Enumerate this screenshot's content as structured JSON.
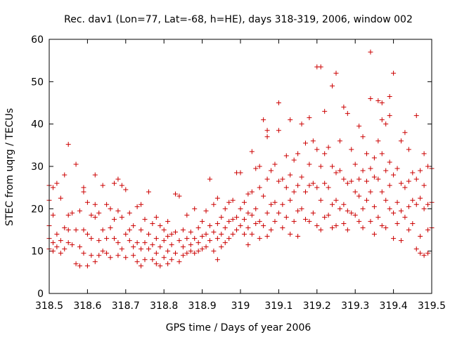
{
  "chart_data": {
    "type": "scatter",
    "title": "Rec. dav1 (Lon=77, Lat=-68, h=HE), days 318-319, 2006, window 002",
    "xlabel": "GPS time / Days of year 2006",
    "ylabel": "STEC from uqrg / TECUs",
    "xlim": [
      318.5,
      319.5
    ],
    "ylim": [
      0,
      60
    ],
    "xticks": [
      318.5,
      318.6,
      318.7,
      318.8,
      318.9,
      319,
      319.1,
      319.2,
      319.3,
      319.4,
      319.5
    ],
    "xtick_labels": [
      "318.5",
      "318.6",
      "318.7",
      "318.8",
      "318.9",
      "319",
      "319.1",
      "319.2",
      "319.3",
      "319.4",
      "319.5"
    ],
    "yticks": [
      0,
      10,
      20,
      30,
      40,
      50,
      60
    ],
    "ytick_labels": [
      "0",
      "10",
      "20",
      "30",
      "40",
      "50",
      "60"
    ],
    "grid": false,
    "marker": "plus",
    "color": "#cc0000",
    "points": [
      [
        318.5,
        25.5
      ],
      [
        318.5,
        22.0
      ],
      [
        318.5,
        16.0
      ],
      [
        318.5,
        13.0
      ],
      [
        318.5,
        10.5
      ],
      [
        318.51,
        25.0
      ],
      [
        318.51,
        18.5
      ],
      [
        318.51,
        12.0
      ],
      [
        318.51,
        10.0
      ],
      [
        318.52,
        26.0
      ],
      [
        318.52,
        14.0
      ],
      [
        318.52,
        11.0
      ],
      [
        318.53,
        22.5
      ],
      [
        318.53,
        12.5
      ],
      [
        318.53,
        9.5
      ],
      [
        318.54,
        28.0
      ],
      [
        318.54,
        15.5
      ],
      [
        318.54,
        10.5
      ],
      [
        318.55,
        35.2
      ],
      [
        318.55,
        18.5
      ],
      [
        318.55,
        15.0
      ],
      [
        318.55,
        12.0
      ],
      [
        318.56,
        19.0
      ],
      [
        318.56,
        11.5
      ],
      [
        318.57,
        30.5
      ],
      [
        318.57,
        15.0
      ],
      [
        318.57,
        7.0
      ],
      [
        318.58,
        19.5
      ],
      [
        318.58,
        11.0
      ],
      [
        318.58,
        6.5
      ],
      [
        318.59,
        25.0
      ],
      [
        318.59,
        24.0
      ],
      [
        318.59,
        15.0
      ],
      [
        318.59,
        9.5
      ],
      [
        318.6,
        21.5
      ],
      [
        318.6,
        14.0
      ],
      [
        318.6,
        6.5
      ],
      [
        318.61,
        18.5
      ],
      [
        318.61,
        13.0
      ],
      [
        318.61,
        9.0
      ],
      [
        318.62,
        28.0
      ],
      [
        318.62,
        21.0
      ],
      [
        318.62,
        18.0
      ],
      [
        318.62,
        7.5
      ],
      [
        318.63,
        19.0
      ],
      [
        318.63,
        12.5
      ],
      [
        318.63,
        9.0
      ],
      [
        318.64,
        25.5
      ],
      [
        318.64,
        15.0
      ],
      [
        318.64,
        10.0
      ],
      [
        318.65,
        21.0
      ],
      [
        318.65,
        13.0
      ],
      [
        318.65,
        9.5
      ],
      [
        318.66,
        20.0
      ],
      [
        318.66,
        15.5
      ],
      [
        318.66,
        8.5
      ],
      [
        318.67,
        26.0
      ],
      [
        318.67,
        17.5
      ],
      [
        318.67,
        13.0
      ],
      [
        318.68,
        27.0
      ],
      [
        318.68,
        19.5
      ],
      [
        318.68,
        12.0
      ],
      [
        318.68,
        9.0
      ],
      [
        318.69,
        25.5
      ],
      [
        318.69,
        18.0
      ],
      [
        318.69,
        10.5
      ],
      [
        318.7,
        24.5
      ],
      [
        318.7,
        14.0
      ],
      [
        318.7,
        8.5
      ],
      [
        318.71,
        19.0
      ],
      [
        318.71,
        15.0
      ],
      [
        318.71,
        12.5
      ],
      [
        318.72,
        16.0
      ],
      [
        318.72,
        11.0
      ],
      [
        318.72,
        9.0
      ],
      [
        318.73,
        20.5
      ],
      [
        318.73,
        12.0
      ],
      [
        318.73,
        7.5
      ],
      [
        318.74,
        21.0
      ],
      [
        318.74,
        15.0
      ],
      [
        318.74,
        10.5
      ],
      [
        318.74,
        6.5
      ],
      [
        318.75,
        17.5
      ],
      [
        318.75,
        12.0
      ],
      [
        318.75,
        8.0
      ],
      [
        318.76,
        24.0
      ],
      [
        318.76,
        14.0
      ],
      [
        318.76,
        10.5
      ],
      [
        318.77,
        16.5
      ],
      [
        318.77,
        11.5
      ],
      [
        318.77,
        8.0
      ],
      [
        318.78,
        18.0
      ],
      [
        318.78,
        13.0
      ],
      [
        318.78,
        9.5
      ],
      [
        318.78,
        7.0
      ],
      [
        318.79,
        16.0
      ],
      [
        318.79,
        11.0
      ],
      [
        318.79,
        6.5
      ],
      [
        318.8,
        15.0
      ],
      [
        318.8,
        12.5
      ],
      [
        318.8,
        8.5
      ],
      [
        318.81,
        17.0
      ],
      [
        318.81,
        13.5
      ],
      [
        318.81,
        10.0
      ],
      [
        318.81,
        7.0
      ],
      [
        318.82,
        14.0
      ],
      [
        318.82,
        11.5
      ],
      [
        318.82,
        8.0
      ],
      [
        318.83,
        23.5
      ],
      [
        318.83,
        14.5
      ],
      [
        318.83,
        9.5
      ],
      [
        318.84,
        23.0
      ],
      [
        318.84,
        12.5
      ],
      [
        318.84,
        7.5
      ],
      [
        318.85,
        15.0
      ],
      [
        318.85,
        11.0
      ],
      [
        318.85,
        9.0
      ],
      [
        318.86,
        18.5
      ],
      [
        318.86,
        13.0
      ],
      [
        318.86,
        9.5
      ],
      [
        318.87,
        14.5
      ],
      [
        318.87,
        11.5
      ],
      [
        318.87,
        10.0
      ],
      [
        318.88,
        20.0
      ],
      [
        318.88,
        13.0
      ],
      [
        318.88,
        9.5
      ],
      [
        318.89,
        15.5
      ],
      [
        318.89,
        12.0
      ],
      [
        318.89,
        10.0
      ],
      [
        318.9,
        17.0
      ],
      [
        318.9,
        13.5
      ],
      [
        318.9,
        10.5
      ],
      [
        318.91,
        19.5
      ],
      [
        318.91,
        14.0
      ],
      [
        318.91,
        11.0
      ],
      [
        318.92,
        27.0
      ],
      [
        318.92,
        16.0
      ],
      [
        318.92,
        12.5
      ],
      [
        318.93,
        21.0
      ],
      [
        318.93,
        14.5
      ],
      [
        318.93,
        10.0
      ],
      [
        318.94,
        22.5
      ],
      [
        318.94,
        16.5
      ],
      [
        318.94,
        13.0
      ],
      [
        318.94,
        8.0
      ],
      [
        318.95,
        18.0
      ],
      [
        318.95,
        14.0
      ],
      [
        318.95,
        11.0
      ],
      [
        318.96,
        20.0
      ],
      [
        318.96,
        15.5
      ],
      [
        318.96,
        12.0
      ],
      [
        318.97,
        21.5
      ],
      [
        318.97,
        17.0
      ],
      [
        318.97,
        13.0
      ],
      [
        318.98,
        22.0
      ],
      [
        318.98,
        17.5
      ],
      [
        318.98,
        14.0
      ],
      [
        318.99,
        28.5
      ],
      [
        318.99,
        18.0
      ],
      [
        318.99,
        15.0
      ],
      [
        319.0,
        28.5
      ],
      [
        319.0,
        20.0
      ],
      [
        319.0,
        16.0
      ],
      [
        319.01,
        21.5
      ],
      [
        319.01,
        17.5
      ],
      [
        319.01,
        14.0
      ],
      [
        319.02,
        23.5
      ],
      [
        319.02,
        19.0
      ],
      [
        319.02,
        15.5
      ],
      [
        319.02,
        11.5
      ],
      [
        319.03,
        33.5
      ],
      [
        319.03,
        24.0
      ],
      [
        319.03,
        18.5
      ],
      [
        319.03,
        14.0
      ],
      [
        319.04,
        29.5
      ],
      [
        319.04,
        20.0
      ],
      [
        319.04,
        16.5
      ],
      [
        319.05,
        30.0
      ],
      [
        319.05,
        25.0
      ],
      [
        319.05,
        17.0
      ],
      [
        319.05,
        13.0
      ],
      [
        319.06,
        41.0
      ],
      [
        319.06,
        23.0
      ],
      [
        319.06,
        16.0
      ],
      [
        319.07,
        38.5
      ],
      [
        319.07,
        37.0
      ],
      [
        319.07,
        27.0
      ],
      [
        319.07,
        19.0
      ],
      [
        319.07,
        13.5
      ],
      [
        319.08,
        29.0
      ],
      [
        319.08,
        21.0
      ],
      [
        319.08,
        15.0
      ],
      [
        319.09,
        30.5
      ],
      [
        319.09,
        21.5
      ],
      [
        319.09,
        17.0
      ],
      [
        319.1,
        45.0
      ],
      [
        319.1,
        38.5
      ],
      [
        319.1,
        26.5
      ],
      [
        319.1,
        19.0
      ],
      [
        319.11,
        27.0
      ],
      [
        319.11,
        21.0
      ],
      [
        319.11,
        15.5
      ],
      [
        319.12,
        32.5
      ],
      [
        319.12,
        25.0
      ],
      [
        319.12,
        18.0
      ],
      [
        319.13,
        41.0
      ],
      [
        319.13,
        28.0
      ],
      [
        319.13,
        22.0
      ],
      [
        319.13,
        14.0
      ],
      [
        319.14,
        31.5
      ],
      [
        319.14,
        24.0
      ],
      [
        319.14,
        17.0
      ],
      [
        319.15,
        33.0
      ],
      [
        319.15,
        25.5
      ],
      [
        319.15,
        19.5
      ],
      [
        319.15,
        13.5
      ],
      [
        319.16,
        40.0
      ],
      [
        319.16,
        27.5
      ],
      [
        319.16,
        20.0
      ],
      [
        319.17,
        35.5
      ],
      [
        319.17,
        24.0
      ],
      [
        319.17,
        17.5
      ],
      [
        319.18,
        41.5
      ],
      [
        319.18,
        30.5
      ],
      [
        319.18,
        25.5
      ],
      [
        319.18,
        17.0
      ],
      [
        319.19,
        36.0
      ],
      [
        319.19,
        26.0
      ],
      [
        319.19,
        19.0
      ],
      [
        319.2,
        53.5
      ],
      [
        319.2,
        34.0
      ],
      [
        319.2,
        25.0
      ],
      [
        319.2,
        16.0
      ],
      [
        319.21,
        53.5
      ],
      [
        319.21,
        30.0
      ],
      [
        319.21,
        22.0
      ],
      [
        319.21,
        15.0
      ],
      [
        319.22,
        43.0
      ],
      [
        319.22,
        33.0
      ],
      [
        319.22,
        26.0
      ],
      [
        319.22,
        18.0
      ],
      [
        319.23,
        34.5
      ],
      [
        319.23,
        25.0
      ],
      [
        319.23,
        18.5
      ],
      [
        319.24,
        49.0
      ],
      [
        319.24,
        30.0
      ],
      [
        319.24,
        21.0
      ],
      [
        319.24,
        15.5
      ],
      [
        319.25,
        52.0
      ],
      [
        319.25,
        28.5
      ],
      [
        319.25,
        22.0
      ],
      [
        319.25,
        16.0
      ],
      [
        319.26,
        36.0
      ],
      [
        319.26,
        29.0
      ],
      [
        319.26,
        20.0
      ],
      [
        319.27,
        44.0
      ],
      [
        319.27,
        27.0
      ],
      [
        319.27,
        21.0
      ],
      [
        319.27,
        16.5
      ],
      [
        319.28,
        42.5
      ],
      [
        319.28,
        26.0
      ],
      [
        319.28,
        19.5
      ],
      [
        319.28,
        15.0
      ],
      [
        319.29,
        34.0
      ],
      [
        319.29,
        26.5
      ],
      [
        319.29,
        19.0
      ],
      [
        319.3,
        30.5
      ],
      [
        319.3,
        24.0
      ],
      [
        319.3,
        18.5
      ],
      [
        319.31,
        39.5
      ],
      [
        319.31,
        27.0
      ],
      [
        319.31,
        23.0
      ],
      [
        319.31,
        17.0
      ],
      [
        319.32,
        37.0
      ],
      [
        319.32,
        29.0
      ],
      [
        319.32,
        20.0
      ],
      [
        319.32,
        15.5
      ],
      [
        319.33,
        33.0
      ],
      [
        319.33,
        26.5
      ],
      [
        319.33,
        22.0
      ],
      [
        319.34,
        57.0
      ],
      [
        319.34,
        46.0
      ],
      [
        319.34,
        29.5
      ],
      [
        319.34,
        24.0
      ],
      [
        319.34,
        17.0
      ],
      [
        319.35,
        32.0
      ],
      [
        319.35,
        27.5
      ],
      [
        319.35,
        20.5
      ],
      [
        319.35,
        14.0
      ],
      [
        319.36,
        45.5
      ],
      [
        319.36,
        36.0
      ],
      [
        319.36,
        27.0
      ],
      [
        319.36,
        18.0
      ],
      [
        319.37,
        45.0
      ],
      [
        319.37,
        41.0
      ],
      [
        319.37,
        33.0
      ],
      [
        319.37,
        24.0
      ],
      [
        319.37,
        16.0
      ],
      [
        319.38,
        40.0
      ],
      [
        319.38,
        29.0
      ],
      [
        319.38,
        22.0
      ],
      [
        319.38,
        15.5
      ],
      [
        319.39,
        46.5
      ],
      [
        319.39,
        42.0
      ],
      [
        319.39,
        31.0
      ],
      [
        319.39,
        25.5
      ],
      [
        319.39,
        20.0
      ],
      [
        319.4,
        52.0
      ],
      [
        319.4,
        28.0
      ],
      [
        319.4,
        19.0
      ],
      [
        319.4,
        13.0
      ],
      [
        319.41,
        29.5
      ],
      [
        319.41,
        21.5
      ],
      [
        319.41,
        16.5
      ],
      [
        319.42,
        36.0
      ],
      [
        319.42,
        26.0
      ],
      [
        319.42,
        19.5
      ],
      [
        319.42,
        12.5
      ],
      [
        319.43,
        38.0
      ],
      [
        319.43,
        25.0
      ],
      [
        319.43,
        18.0
      ],
      [
        319.44,
        34.0
      ],
      [
        319.44,
        26.5
      ],
      [
        319.44,
        20.5
      ],
      [
        319.44,
        15.0
      ],
      [
        319.45,
        28.5
      ],
      [
        319.45,
        22.0
      ],
      [
        319.45,
        16.5
      ],
      [
        319.46,
        42.0
      ],
      [
        319.46,
        27.0
      ],
      [
        319.46,
        21.0
      ],
      [
        319.46,
        10.5
      ],
      [
        319.47,
        29.0
      ],
      [
        319.47,
        22.5
      ],
      [
        319.47,
        13.5
      ],
      [
        319.47,
        9.5
      ],
      [
        319.48,
        33.0
      ],
      [
        319.48,
        25.5
      ],
      [
        319.48,
        20.0
      ],
      [
        319.48,
        9.0
      ],
      [
        319.49,
        30.0
      ],
      [
        319.49,
        21.0
      ],
      [
        319.49,
        15.0
      ],
      [
        319.49,
        9.5
      ],
      [
        319.5,
        29.5
      ],
      [
        319.5,
        21.5
      ],
      [
        319.5,
        15.5
      ]
    ]
  }
}
